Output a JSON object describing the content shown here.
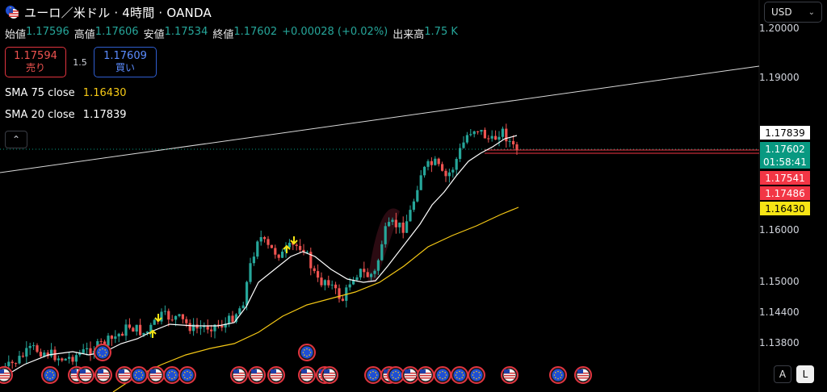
{
  "header": {
    "title": "ユーロ／米ドル · 4時間 · OANDA",
    "currency": "USD"
  },
  "ohlc": {
    "open_label": "始値",
    "open": "1.17596",
    "high_label": "高値",
    "high": "1.17606",
    "low_label": "安値",
    "low": "1.17534",
    "close_label": "終値",
    "close": "1.17602",
    "change": "+0.00028 (+0.02%)",
    "volume_label": "出来高",
    "volume": "1.75 K"
  },
  "trade": {
    "sell_price": "1.17594",
    "sell_label": "売り",
    "spread": "1.5",
    "buy_price": "1.17609",
    "buy_label": "買い"
  },
  "indicators": {
    "sma75_name": "SMA 75 close",
    "sma75_value": "1.16430",
    "sma20_name": "SMA 20 close",
    "sma20_value": "1.17839"
  },
  "price_axis": {
    "ticks": [
      "1.20000",
      "1.19000",
      "1.16000",
      "1.15000",
      "1.14400",
      "1.13800"
    ]
  },
  "price_tags": {
    "sma20": "1.17839",
    "last": "1.17602",
    "countdown": "01:58:41",
    "tag_red1": "1.17541",
    "tag_red2": "1.17486",
    "sma75": "1.16430"
  },
  "colors": {
    "up": "#26a69a",
    "down": "#ef5350",
    "sma20": "#ffffff",
    "sma75": "#f6c915",
    "trendline": "#d9d9d9"
  },
  "buttons": {
    "auto": "A",
    "log": "L"
  },
  "icons": [
    "eur-flag-icon",
    "usd-flag-icon",
    "chevron-down-icon",
    "chevron-up-icon"
  ]
}
